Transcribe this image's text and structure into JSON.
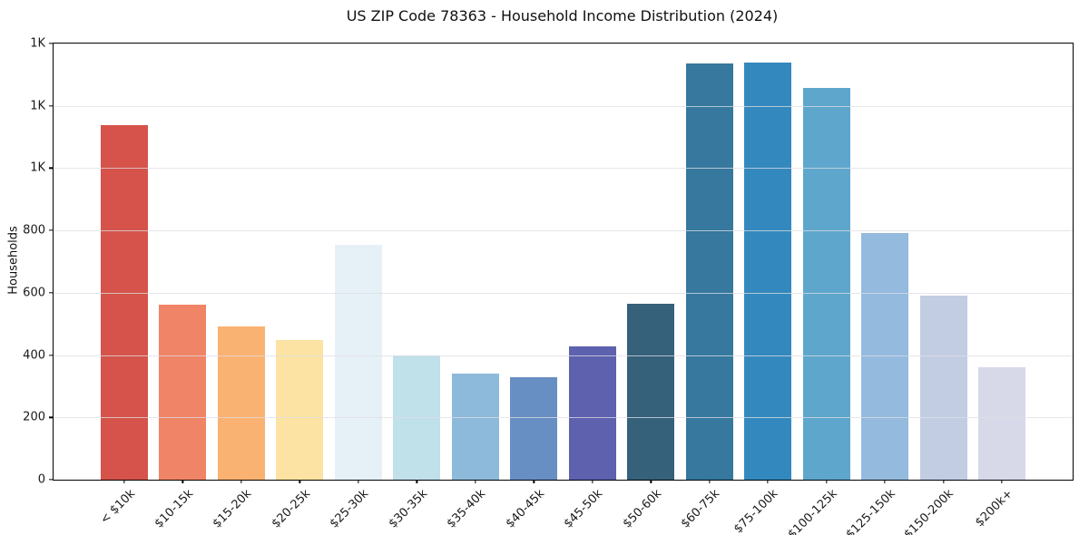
{
  "chart_data": {
    "type": "bar",
    "title": "US ZIP Code 78363 - Household Income Distribution (2024)",
    "xlabel": "",
    "ylabel": "Households",
    "categories": [
      "< $10k",
      "$10-15k",
      "$15-20k",
      "$20-25k",
      "$25-30k",
      "$30-35k",
      "$35-40k",
      "$40-45k",
      "$45-50k",
      "$50-60k",
      "$60-75k",
      "$75-100k",
      "$100-125k",
      "$125-150k",
      "$150-200k",
      "$200k+"
    ],
    "values": [
      1139,
      562,
      493,
      449,
      753,
      399,
      340,
      328,
      429,
      565,
      1336,
      1340,
      1257,
      792,
      590,
      361
    ],
    "bar_colors": [
      "#d5534a",
      "#f08466",
      "#f9b271",
      "#fce3a3",
      "#e6f1f7",
      "#c0e0ea",
      "#8dbada",
      "#688fc3",
      "#5d61ae",
      "#35617a",
      "#36789e",
      "#3389bd",
      "#5ea6cc",
      "#94bade",
      "#c2cde4",
      "#d8d9e8"
    ],
    "ylim": [
      0,
      1400
    ],
    "yticks": [
      0,
      200,
      400,
      600,
      800,
      1000,
      1200,
      1400
    ],
    "ytick_labels": [
      "0",
      "200",
      "400",
      "600",
      "800",
      "1K",
      "1K",
      "1K"
    ],
    "grid": "horizontal",
    "legend_position": "none"
  },
  "colors": {
    "background": "#ffffff",
    "axis": "#000000",
    "grid": "#e7e7ec",
    "text": "#1a1a1a"
  }
}
